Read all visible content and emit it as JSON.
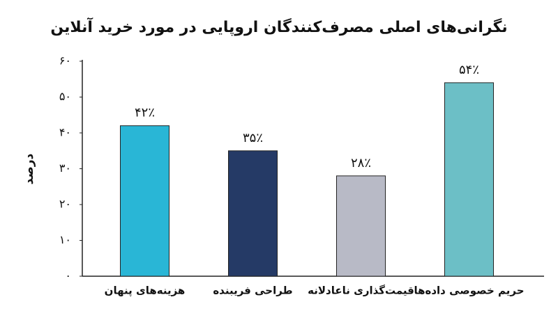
{
  "chart_data": {
    "type": "bar",
    "title": "نگرانی‌های اصلی مصرف‌کنندگان اروپایی در مورد خرید آنلاین",
    "y_label": "درصد",
    "categories": [
      "هزینه‌های پنهان",
      "طراحی فریبنده",
      "قیمت‌گذاری ناعادلانه",
      "حریم خصوصی داده‌ها"
    ],
    "values": [
      42,
      35,
      28,
      54
    ],
    "value_labels": [
      "۴۲٪",
      "۳۵٪",
      "۲۸٪",
      "۵۴٪"
    ],
    "colors": [
      "#29b6d6",
      "#253a66",
      "#b8bac6",
      "#6cbfc6"
    ],
    "ylim": [
      0,
      60
    ],
    "yticks": [
      {
        "value": 0,
        "label": "۰"
      },
      {
        "value": 10,
        "label": "۱۰"
      },
      {
        "value": 20,
        "label": "۲۰"
      },
      {
        "value": 30,
        "label": "۳۰"
      },
      {
        "value": 40,
        "label": "۴۰"
      },
      {
        "value": 50,
        "label": "۵۰"
      },
      {
        "value": 60,
        "label": "۶۰"
      }
    ]
  }
}
